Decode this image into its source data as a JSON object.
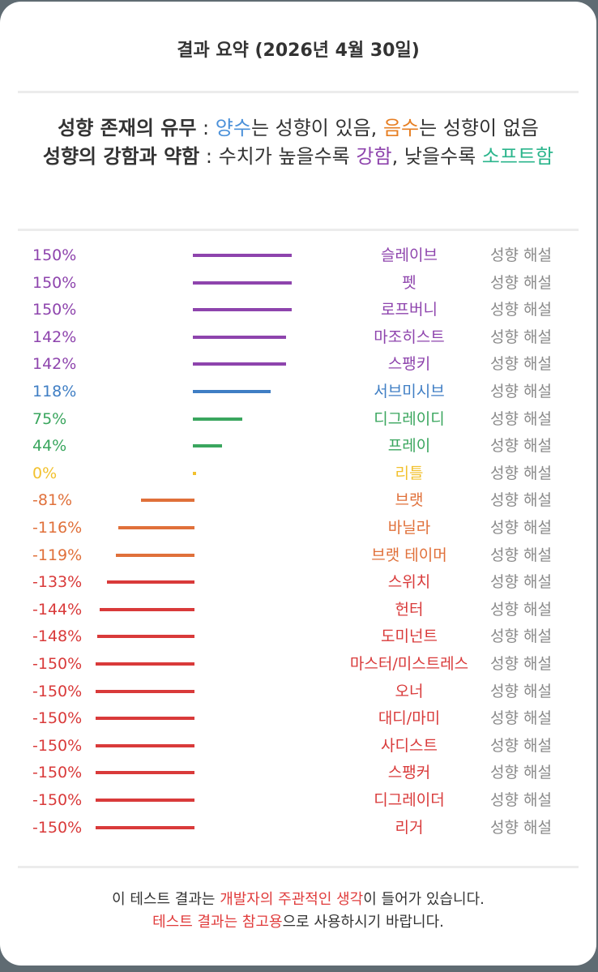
{
  "title": "결과 요약 (2026년 4월 30일)",
  "legend": {
    "line1_label": "성향 존재의 유무",
    "line1_sep": " : ",
    "line1_positive": "양수",
    "line1_mid": "는 성향이 있음, ",
    "line1_negative": "음수",
    "line1_end": "는 성향이 없음",
    "line2_label": "성향의 강함과 약함",
    "line2_sep": " : 수치가 높을수록 ",
    "line2_strong": "강함",
    "line2_mid": ", 낮을수록 ",
    "line2_soft": "소프트함"
  },
  "explain_label": "성향 해설",
  "colors": {
    "purple": "#8e44ad",
    "blue": "#3f7ec4",
    "green": "#3aa65e",
    "yellow": "#f2c12e",
    "orange": "#e0703a",
    "red": "#d93a3a"
  },
  "results": [
    {
      "pct": "150%",
      "value": 150,
      "name": "슬레이브",
      "color": "#8e44ad"
    },
    {
      "pct": "150%",
      "value": 150,
      "name": "펫",
      "color": "#8e44ad"
    },
    {
      "pct": "150%",
      "value": 150,
      "name": "로프버니",
      "color": "#8e44ad"
    },
    {
      "pct": "142%",
      "value": 142,
      "name": "마조히스트",
      "color": "#8e44ad"
    },
    {
      "pct": "142%",
      "value": 142,
      "name": "스팽키",
      "color": "#8e44ad"
    },
    {
      "pct": "118%",
      "value": 118,
      "name": "서브미시브",
      "color": "#3f7ec4"
    },
    {
      "pct": "75%",
      "value": 75,
      "name": "디그레이디",
      "color": "#3aa65e"
    },
    {
      "pct": "44%",
      "value": 44,
      "name": "프레이",
      "color": "#3aa65e"
    },
    {
      "pct": "0%",
      "value": 0,
      "name": "리틀",
      "color": "#f2c12e"
    },
    {
      "pct": "-81%",
      "value": -81,
      "name": "브랫",
      "color": "#e0703a"
    },
    {
      "pct": "-116%",
      "value": -116,
      "name": "바닐라",
      "color": "#e0703a"
    },
    {
      "pct": "-119%",
      "value": -119,
      "name": "브랫 테이머",
      "color": "#e0703a"
    },
    {
      "pct": "-133%",
      "value": -133,
      "name": "스위치",
      "color": "#d93a3a"
    },
    {
      "pct": "-144%",
      "value": -144,
      "name": "헌터",
      "color": "#d93a3a"
    },
    {
      "pct": "-148%",
      "value": -148,
      "name": "도미넌트",
      "color": "#d93a3a"
    },
    {
      "pct": "-150%",
      "value": -150,
      "name": "마스터/미스트레스",
      "color": "#d93a3a"
    },
    {
      "pct": "-150%",
      "value": -150,
      "name": "오너",
      "color": "#d93a3a"
    },
    {
      "pct": "-150%",
      "value": -150,
      "name": "대디/마미",
      "color": "#d93a3a"
    },
    {
      "pct": "-150%",
      "value": -150,
      "name": "사디스트",
      "color": "#d93a3a"
    },
    {
      "pct": "-150%",
      "value": -150,
      "name": "스팽커",
      "color": "#d93a3a"
    },
    {
      "pct": "-150%",
      "value": -150,
      "name": "디그레이더",
      "color": "#d93a3a"
    },
    {
      "pct": "-150%",
      "value": -150,
      "name": "리거",
      "color": "#d93a3a"
    }
  ],
  "footer": {
    "line1_start": "이 테스트 결과는 ",
    "line1_highlight": "개발자의 주관적인 생각",
    "line1_end": "이 들어가 있습니다.",
    "line2_highlight": "테스트 결과는 참고용",
    "line2_end": "으로 사용하시기 바랍니다."
  }
}
